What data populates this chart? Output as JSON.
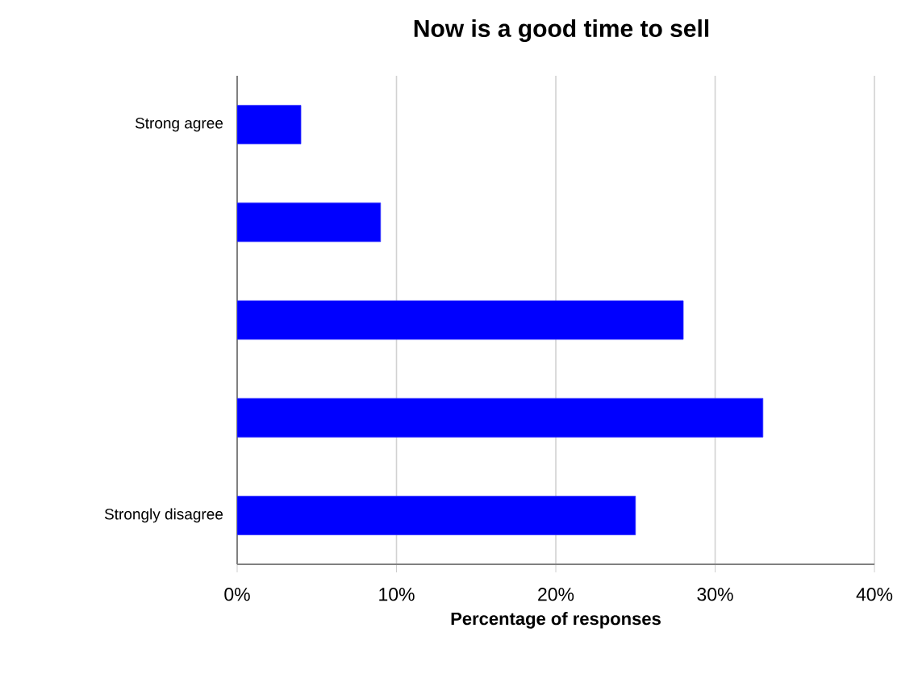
{
  "chart_data": {
    "type": "bar",
    "orientation": "horizontal",
    "title": "Now is a good time to sell",
    "xlabel": "Percentage of responses",
    "categories": [
      "Strong agree",
      null,
      null,
      null,
      "Strongly disagree"
    ],
    "values": [
      4,
      9,
      28,
      33,
      25
    ],
    "color": "#0000ff",
    "xlim": [
      0,
      40
    ],
    "xticks": [
      {
        "value": 0,
        "label": "0%"
      },
      {
        "value": 10,
        "label": "10%"
      },
      {
        "value": 20,
        "label": "20%"
      },
      {
        "value": 30,
        "label": "30%"
      },
      {
        "value": 40,
        "label": "40%"
      }
    ],
    "grid": "x"
  }
}
